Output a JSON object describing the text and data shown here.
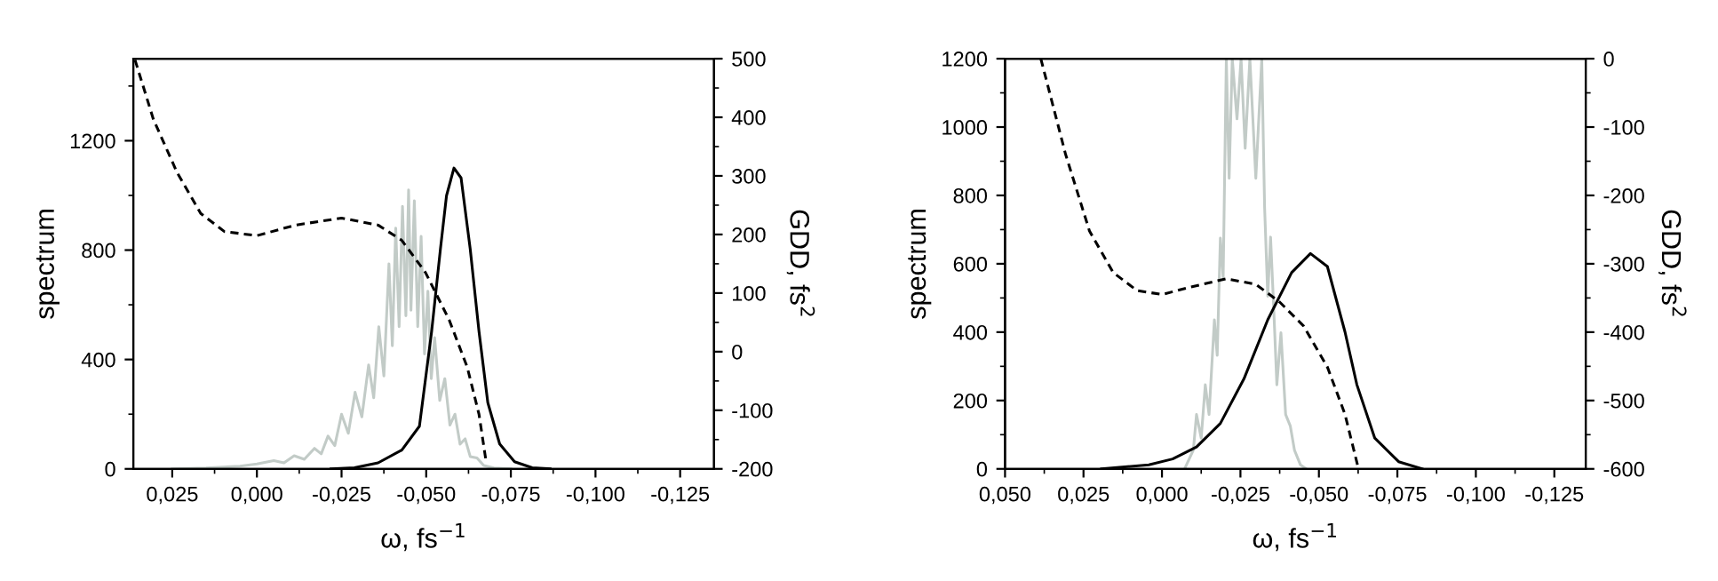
{
  "chart_data": [
    {
      "type": "line",
      "xlabel": "ω, fs$^{−1}$",
      "ylabel": "spectrum",
      "y2label": "GDD, fs$^{2}$",
      "xlim": [
        0.0365,
        -0.135
      ],
      "xticks": [
        {
          "value": 0.025,
          "label": "0,025"
        },
        {
          "value": 0.0,
          "label": "0,000"
        },
        {
          "value": -0.025,
          "label": "-0,025"
        },
        {
          "value": -0.05,
          "label": "-0,050"
        },
        {
          "value": -0.075,
          "label": "-0,075"
        },
        {
          "value": -0.1,
          "label": "-0,100"
        },
        {
          "value": -0.125,
          "label": "-0,125"
        }
      ],
      "ylim": [
        0,
        1500
      ],
      "yticks": [
        0,
        400,
        800,
        1200
      ],
      "y2lim": [
        -200,
        500
      ],
      "y2ticks": [
        -200,
        -100,
        0,
        100,
        200,
        300,
        400,
        500
      ],
      "grid": false,
      "series": [
        {
          "color": "#c2cbc7",
          "line_style": "solid",
          "x": [
            0.025,
            0.015,
            0.005,
            0.0,
            -0.005,
            -0.008,
            -0.011,
            -0.014,
            -0.017,
            -0.019,
            -0.021,
            -0.023,
            -0.025,
            -0.027,
            -0.029,
            -0.031,
            -0.033,
            -0.0345,
            -0.036,
            -0.0375,
            -0.039,
            -0.04,
            -0.041,
            -0.042,
            -0.043,
            -0.044,
            -0.0448,
            -0.0455,
            -0.0465,
            -0.0475,
            -0.0485,
            -0.0495,
            -0.0505,
            -0.0515,
            -0.0525,
            -0.054,
            -0.0555,
            -0.057,
            -0.0585,
            -0.06,
            -0.0615,
            -0.063,
            -0.065,
            -0.067,
            -0.07,
            -0.075
          ],
          "values": [
            0,
            3,
            10,
            18,
            30,
            22,
            48,
            35,
            75,
            55,
            120,
            85,
            200,
            130,
            280,
            190,
            380,
            260,
            520,
            340,
            750,
            450,
            880,
            520,
            960,
            560,
            1020,
            580,
            980,
            520,
            850,
            420,
            650,
            330,
            480,
            250,
            330,
            160,
            200,
            90,
            110,
            45,
            40,
            12,
            3,
            0
          ]
        },
        {
          "color": "#000000",
          "line_style": "solid",
          "x": [
            -0.0219,
            -0.0288,
            -0.0358,
            -0.0428,
            -0.048,
            -0.0516,
            -0.0542,
            -0.056,
            -0.0582,
            -0.0603,
            -0.063,
            -0.0656,
            -0.0682,
            -0.0717,
            -0.0761,
            -0.0813,
            -0.0866
          ],
          "values": [
            0,
            4,
            22,
            69,
            156,
            502,
            804,
            999,
            1100,
            1064,
            804,
            502,
            242,
            91,
            26,
            4,
            0
          ]
        },
        {
          "color": "#000000",
          "line_style": "dashed",
          "axis": "y2",
          "x": [
            0.036,
            0.0306,
            0.0236,
            0.0166,
            0.0096,
            0.0,
            -0.0114,
            -0.025,
            -0.0358,
            -0.0428,
            -0.0498,
            -0.0568,
            -0.0621,
            -0.0656,
            -0.0677
          ],
          "values": [
            498,
            397,
            306,
            236,
            205,
            198,
            216,
            228,
            216,
            190,
            135,
            54,
            -26,
            -107,
            -188
          ]
        }
      ]
    },
    {
      "type": "line",
      "xlabel": "ω, fs$^{−1}$",
      "ylabel": "spectrum",
      "y2label": "GDD, fs$^{2}$",
      "xlim": [
        0.05,
        -0.135
      ],
      "xticks": [
        {
          "value": 0.05,
          "label": "0,050"
        },
        {
          "value": 0.025,
          "label": "0,025"
        },
        {
          "value": 0.0,
          "label": "0,000"
        },
        {
          "value": -0.025,
          "label": "-0,025"
        },
        {
          "value": -0.05,
          "label": "-0,050"
        },
        {
          "value": -0.075,
          "label": "-0,075"
        },
        {
          "value": -0.1,
          "label": "-0,100"
        },
        {
          "value": -0.125,
          "label": "-0,125"
        }
      ],
      "ylim": [
        0,
        1200
      ],
      "yticks": [
        0,
        200,
        400,
        600,
        800,
        1000,
        1200
      ],
      "y2lim": [
        -600,
        0
      ],
      "y2ticks": [
        -600,
        -500,
        -400,
        -300,
        -200,
        -100,
        0
      ],
      "grid": false,
      "series": [
        {
          "color": "#c2cbc7",
          "line_style": "solid",
          "x": [
            -0.0072,
            -0.01,
            -0.011,
            -0.0125,
            -0.0138,
            -0.015,
            -0.0167,
            -0.0176,
            -0.0186,
            -0.0195,
            -0.0205,
            -0.0214,
            -0.0224,
            -0.0239,
            -0.0252,
            -0.0265,
            -0.028,
            -0.0299,
            -0.0318,
            -0.0327,
            -0.0337,
            -0.0346,
            -0.0356,
            -0.0366,
            -0.0379,
            -0.0394,
            -0.0409,
            -0.0422,
            -0.0441,
            -0.046
          ],
          "values": [
            0,
            55,
            159,
            90,
            246,
            159,
            436,
            332,
            675,
            560,
            1200,
            850,
            1200,
            1024,
            1200,
            938,
            1200,
            850,
            1200,
            765,
            505,
            678,
            470,
            246,
            398,
            159,
            125,
            55,
            12,
            0
          ]
        },
        {
          "color": "#000000",
          "line_style": "solid",
          "x": [
            0.0193,
            0.0042,
            -0.0034,
            -0.011,
            -0.0186,
            -0.0261,
            -0.0337,
            -0.0413,
            -0.0473,
            -0.0527,
            -0.0583,
            -0.0621,
            -0.0678,
            -0.0754,
            -0.0829
          ],
          "values": [
            0,
            12,
            29,
            64,
            133,
            263,
            436,
            574,
            630,
            592,
            401,
            246,
            90,
            21,
            0
          ]
        },
        {
          "color": "#000000",
          "line_style": "dashed",
          "axis": "y2",
          "x": [
            0.0386,
            0.0307,
            0.0231,
            0.0155,
            0.008,
            0.0,
            -0.0091,
            -0.0205,
            -0.0299,
            -0.0375,
            -0.0451,
            -0.0527,
            -0.0583,
            -0.0625
          ],
          "values": [
            0,
            -140,
            -252,
            -313,
            -339,
            -345,
            -334,
            -322,
            -330,
            -356,
            -391,
            -451,
            -520,
            -598
          ]
        }
      ]
    }
  ]
}
